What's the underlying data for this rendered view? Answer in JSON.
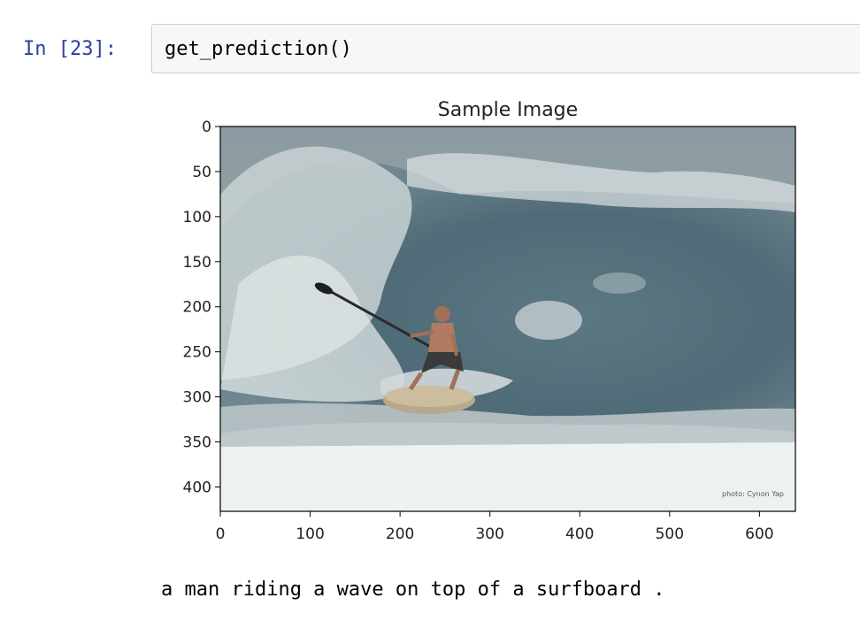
{
  "cell": {
    "prompt": "In [23]:",
    "code": "get_prediction()"
  },
  "figure": {
    "title": "Sample Image",
    "x_ticks": [
      0,
      100,
      200,
      300,
      400,
      500,
      600
    ],
    "y_ticks": [
      0,
      50,
      100,
      150,
      200,
      250,
      300,
      350,
      400
    ],
    "xlim": [
      0,
      640
    ],
    "ylim": [
      0,
      427
    ],
    "watermark": "photo: Cynon Yap"
  },
  "output": {
    "caption": "a man riding a wave on top of a surfboard ."
  }
}
